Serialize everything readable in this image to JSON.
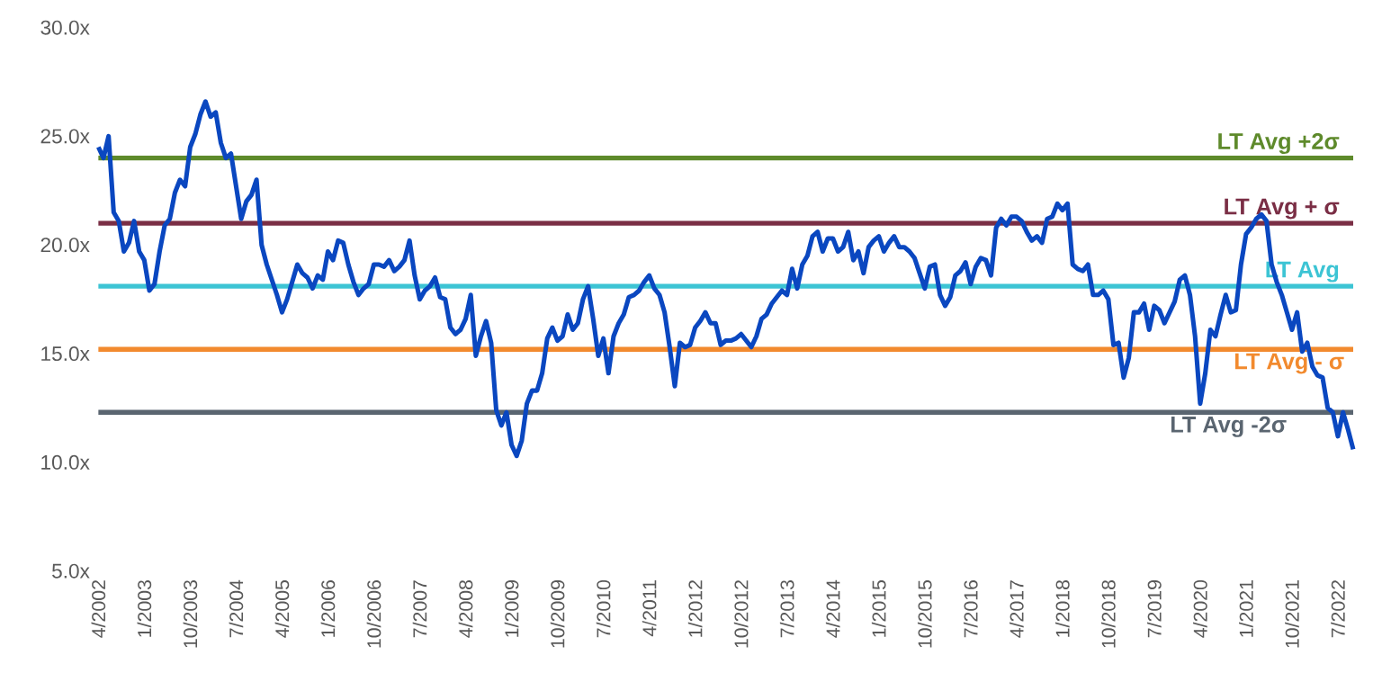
{
  "chart_data": {
    "type": "line",
    "x": [
      "2002-04",
      "2002-05",
      "2002-06",
      "2002-07",
      "2002-08",
      "2002-09",
      "2002-10",
      "2002-11",
      "2002-12",
      "2003-01",
      "2003-02",
      "2003-03",
      "2003-04",
      "2003-05",
      "2003-06",
      "2003-07",
      "2003-08",
      "2003-09",
      "2003-10",
      "2003-11",
      "2003-12",
      "2004-01",
      "2004-02",
      "2004-03",
      "2004-04",
      "2004-05",
      "2004-06",
      "2004-07",
      "2004-08",
      "2004-09",
      "2004-10",
      "2004-11",
      "2004-12",
      "2005-01",
      "2005-02",
      "2005-03",
      "2005-04",
      "2005-05",
      "2005-06",
      "2005-07",
      "2005-08",
      "2005-09",
      "2005-10",
      "2005-11",
      "2005-12",
      "2006-01",
      "2006-02",
      "2006-03",
      "2006-04",
      "2006-05",
      "2006-06",
      "2006-07",
      "2006-08",
      "2006-09",
      "2006-10",
      "2006-11",
      "2006-12",
      "2007-01",
      "2007-02",
      "2007-03",
      "2007-04",
      "2007-05",
      "2007-06",
      "2007-07",
      "2007-08",
      "2007-09",
      "2007-10",
      "2007-11",
      "2007-12",
      "2008-01",
      "2008-02",
      "2008-03",
      "2008-04",
      "2008-05",
      "2008-06",
      "2008-07",
      "2008-08",
      "2008-09",
      "2008-10",
      "2008-11",
      "2008-12",
      "2009-01",
      "2009-02",
      "2009-03",
      "2009-04",
      "2009-05",
      "2009-06",
      "2009-07",
      "2009-08",
      "2009-09",
      "2009-10",
      "2009-11",
      "2009-12",
      "2010-01",
      "2010-02",
      "2010-03",
      "2010-04",
      "2010-05",
      "2010-06",
      "2010-07",
      "2010-08",
      "2010-09",
      "2010-10",
      "2010-11",
      "2010-12",
      "2011-01",
      "2011-02",
      "2011-03",
      "2011-04",
      "2011-05",
      "2011-06",
      "2011-07",
      "2011-08",
      "2011-09",
      "2011-10",
      "2011-11",
      "2011-12",
      "2012-01",
      "2012-02",
      "2012-03",
      "2012-04",
      "2012-05",
      "2012-06",
      "2012-07",
      "2012-08",
      "2012-09",
      "2012-10",
      "2012-11",
      "2012-12",
      "2013-01",
      "2013-02",
      "2013-03",
      "2013-04",
      "2013-05",
      "2013-06",
      "2013-07",
      "2013-08",
      "2013-09",
      "2013-10",
      "2013-11",
      "2013-12",
      "2014-01",
      "2014-02",
      "2014-03",
      "2014-04",
      "2014-05",
      "2014-06",
      "2014-07",
      "2014-08",
      "2014-09",
      "2014-10",
      "2014-11",
      "2014-12",
      "2015-01",
      "2015-02",
      "2015-03",
      "2015-04",
      "2015-05",
      "2015-06",
      "2015-07",
      "2015-08",
      "2015-09",
      "2015-10",
      "2015-11",
      "2015-12",
      "2016-01",
      "2016-02",
      "2016-03",
      "2016-04",
      "2016-05",
      "2016-06",
      "2016-07",
      "2016-08",
      "2016-09",
      "2016-10",
      "2016-11",
      "2016-12",
      "2017-01",
      "2017-02",
      "2017-03",
      "2017-04",
      "2017-05",
      "2017-06",
      "2017-07",
      "2017-08",
      "2017-09",
      "2017-10",
      "2017-11",
      "2017-12",
      "2018-01",
      "2018-02",
      "2018-03",
      "2018-04",
      "2018-05",
      "2018-06",
      "2018-07",
      "2018-08",
      "2018-09",
      "2018-10",
      "2018-11",
      "2018-12",
      "2019-01",
      "2019-02",
      "2019-03",
      "2019-04",
      "2019-05",
      "2019-06",
      "2019-07",
      "2019-08",
      "2019-09",
      "2019-10",
      "2019-11",
      "2019-12",
      "2020-01",
      "2020-02",
      "2020-03",
      "2020-04",
      "2020-05",
      "2020-06",
      "2020-07",
      "2020-08",
      "2020-09",
      "2020-10",
      "2020-11",
      "2020-12",
      "2021-01",
      "2021-02",
      "2021-03",
      "2021-04",
      "2021-05",
      "2021-06",
      "2021-07",
      "2021-08",
      "2021-09",
      "2021-10",
      "2021-11",
      "2021-12",
      "2022-01",
      "2022-02",
      "2022-03",
      "2022-04",
      "2022-05",
      "2022-06",
      "2022-07",
      "2022-08",
      "2022-09",
      "2022-10"
    ],
    "series": [
      {
        "color": "#0a47c0",
        "values": [
          24.5,
          24.0,
          25.0,
          21.5,
          21.1,
          19.7,
          20.1,
          21.1,
          19.7,
          19.3,
          17.9,
          18.2,
          19.7,
          20.9,
          21.2,
          22.4,
          23.0,
          22.7,
          24.5,
          25.1,
          26.0,
          26.6,
          25.9,
          26.1,
          24.7,
          24.0,
          24.2,
          22.7,
          21.2,
          22.0,
          22.3,
          23.0,
          20.0,
          19.1,
          18.4,
          17.7,
          16.9,
          17.5,
          18.3,
          19.1,
          18.7,
          18.5,
          18.0,
          18.6,
          18.4,
          19.7,
          19.3,
          20.2,
          20.1,
          19.1,
          18.3,
          17.7,
          18.0,
          18.2,
          19.1,
          19.1,
          19.0,
          19.3,
          18.8,
          19.0,
          19.3,
          20.2,
          18.6,
          17.5,
          17.9,
          18.1,
          18.5,
          17.6,
          17.5,
          16.2,
          15.9,
          16.1,
          16.6,
          17.7,
          14.9,
          15.8,
          16.5,
          15.5,
          12.4,
          11.7,
          12.3,
          10.8,
          10.3,
          11.0,
          12.7,
          13.3,
          13.3,
          14.1,
          15.7,
          16.2,
          15.6,
          15.8,
          16.8,
          16.1,
          16.4,
          17.5,
          18.1,
          16.6,
          14.9,
          15.7,
          14.1,
          15.8,
          16.4,
          16.8,
          17.6,
          17.7,
          17.9,
          18.3,
          18.6,
          18.0,
          17.7,
          16.9,
          15.3,
          13.5,
          15.5,
          15.3,
          15.4,
          16.2,
          16.5,
          16.9,
          16.4,
          16.4,
          15.4,
          15.6,
          15.6,
          15.7,
          15.9,
          15.6,
          15.3,
          15.8,
          16.6,
          16.8,
          17.3,
          17.6,
          17.9,
          17.7,
          18.9,
          18.0,
          19.1,
          19.5,
          20.4,
          20.6,
          19.7,
          20.3,
          20.3,
          19.7,
          19.9,
          20.6,
          19.3,
          19.7,
          18.7,
          19.9,
          20.2,
          20.4,
          19.7,
          20.1,
          20.4,
          19.9,
          19.9,
          19.7,
          19.4,
          18.7,
          18.0,
          19.0,
          19.1,
          17.7,
          17.2,
          17.6,
          18.6,
          18.8,
          19.2,
          18.2,
          19.0,
          19.4,
          19.3,
          18.6,
          20.8,
          21.2,
          20.9,
          21.3,
          21.3,
          21.1,
          20.6,
          20.2,
          20.4,
          20.1,
          21.2,
          21.3,
          21.9,
          21.6,
          21.9,
          19.1,
          18.9,
          18.8,
          19.1,
          17.7,
          17.7,
          17.9,
          17.5,
          15.4,
          15.5,
          13.9,
          14.8,
          16.9,
          16.9,
          17.3,
          16.1,
          17.2,
          17.0,
          16.4,
          16.9,
          17.4,
          18.4,
          18.6,
          17.7,
          15.8,
          12.7,
          14.1,
          16.1,
          15.8,
          16.8,
          17.7,
          16.9,
          17.0,
          19.1,
          20.5,
          20.8,
          21.2,
          21.4,
          21.1,
          19.1,
          18.3,
          17.7,
          16.9,
          16.1,
          16.9,
          15.1,
          15.5,
          14.4,
          14.0,
          13.9,
          12.5,
          12.3,
          11.2,
          12.3,
          11.5,
          10.6
        ]
      }
    ],
    "xlim": [
      "2002-04",
      "2022-10"
    ],
    "xticks": [
      {
        "value": "2002-04",
        "label": "4/2002"
      },
      {
        "value": "2003-01",
        "label": "1/2003"
      },
      {
        "value": "2003-10",
        "label": "10/2003"
      },
      {
        "value": "2004-07",
        "label": "7/2004"
      },
      {
        "value": "2005-04",
        "label": "4/2005"
      },
      {
        "value": "2006-01",
        "label": "1/2006"
      },
      {
        "value": "2006-10",
        "label": "10/2006"
      },
      {
        "value": "2007-07",
        "label": "7/2007"
      },
      {
        "value": "2008-04",
        "label": "4/2008"
      },
      {
        "value": "2009-01",
        "label": "1/2009"
      },
      {
        "value": "2009-10",
        "label": "10/2009"
      },
      {
        "value": "2010-07",
        "label": "7/2010"
      },
      {
        "value": "2011-04",
        "label": "4/2011"
      },
      {
        "value": "2012-01",
        "label": "1/2012"
      },
      {
        "value": "2012-10",
        "label": "10/2012"
      },
      {
        "value": "2013-07",
        "label": "7/2013"
      },
      {
        "value": "2014-04",
        "label": "4/2014"
      },
      {
        "value": "2015-01",
        "label": "1/2015"
      },
      {
        "value": "2015-10",
        "label": "10/2015"
      },
      {
        "value": "2016-07",
        "label": "7/2016"
      },
      {
        "value": "2017-04",
        "label": "4/2017"
      },
      {
        "value": "2018-01",
        "label": "1/2018"
      },
      {
        "value": "2018-10",
        "label": "10/2018"
      },
      {
        "value": "2019-07",
        "label": "7/2019"
      },
      {
        "value": "2020-04",
        "label": "4/2020"
      },
      {
        "value": "2021-01",
        "label": "1/2021"
      },
      {
        "value": "2021-10",
        "label": "10/2021"
      },
      {
        "value": "2022-07",
        "label": "7/2022"
      }
    ],
    "ylim": [
      5,
      30
    ],
    "yticks": [
      {
        "value": 5,
        "label": "5.0x"
      },
      {
        "value": 10,
        "label": "10.0x"
      },
      {
        "value": 15,
        "label": "15.0x"
      },
      {
        "value": 20,
        "label": "20.0x"
      },
      {
        "value": 25,
        "label": "25.0x"
      },
      {
        "value": 30,
        "label": "30.0x"
      }
    ],
    "ref_lines": [
      {
        "axis": "y",
        "value": 24.0,
        "label": "LT Avg +2σ",
        "color": "#5e8a2b"
      },
      {
        "axis": "y",
        "value": 21.0,
        "label": "LT Avg + σ",
        "color": "#7a2e45"
      },
      {
        "axis": "y",
        "value": 18.1,
        "label": "LT Avg",
        "color": "#3cc4d4"
      },
      {
        "axis": "y",
        "value": 15.2,
        "label": "LT Avg - σ",
        "color": "#f28a2e"
      },
      {
        "axis": "y",
        "value": 12.3,
        "label": "LT Avg -2σ",
        "color": "#5a6570"
      }
    ],
    "grid": false,
    "marker": "none",
    "line_style": "solid"
  }
}
